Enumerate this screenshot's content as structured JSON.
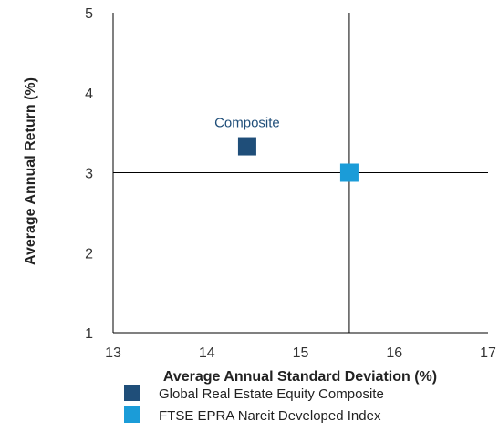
{
  "chart_data": {
    "type": "scatter",
    "title": "",
    "xlabel": "Average Annual Standard Deviation (%)",
    "ylabel": "Average Annual Return (%)",
    "xlim": [
      13,
      17
    ],
    "ylim": [
      1,
      5
    ],
    "xticks": [
      "13",
      "14",
      "15",
      "16",
      "17"
    ],
    "yticks": [
      "1",
      "2",
      "3",
      "4",
      "5"
    ],
    "grid": false,
    "legend_position": "bottom",
    "reference_lines": {
      "x": 15.52,
      "y": 3.0
    },
    "series": [
      {
        "name": "Global Real Estate Equity Composite",
        "color": "#1f4e79",
        "marker": "square",
        "x": 14.43,
        "y": 3.33
      },
      {
        "name": "FTSE EPRA Nareit Developed Index",
        "color": "#1b9cd8",
        "marker": "square",
        "x": 15.52,
        "y": 3.0
      }
    ],
    "annotations": [
      {
        "text": "Composite",
        "x": 14.43,
        "y": 3.33
      }
    ]
  }
}
